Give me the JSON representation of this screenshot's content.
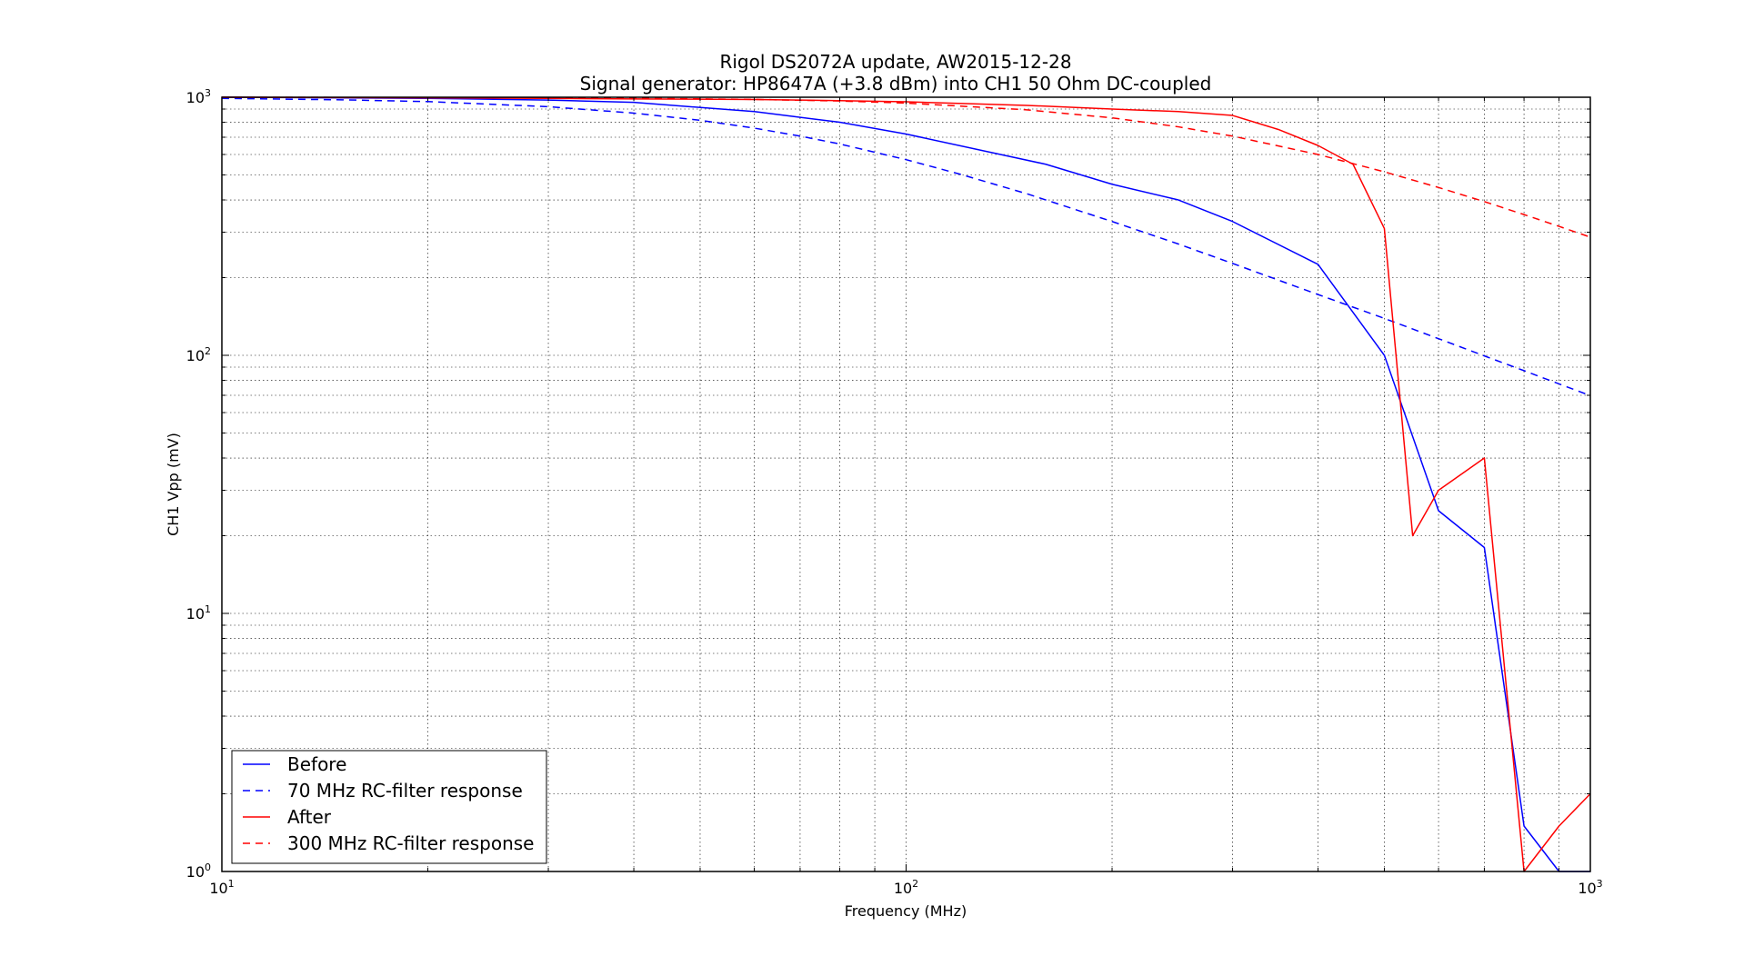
{
  "chart_data": {
    "type": "line",
    "title": "Rigol DS2072A update, AW2015-12-28",
    "subtitle": "Signal generator: HP8647A (+3.8 dBm) into CH1 50 Ohm DC-coupled",
    "xlabel": "Frequency (MHz)",
    "ylabel": "CH1 Vpp (mV)",
    "xscale": "log",
    "yscale": "log",
    "xlim": [
      10,
      1000
    ],
    "ylim": [
      1,
      1000
    ],
    "grid": true,
    "legend_position": "lower-left",
    "x_ticks": [
      {
        "base": "10",
        "exp": "1",
        "value": 10
      },
      {
        "base": "10",
        "exp": "2",
        "value": 100
      },
      {
        "base": "10",
        "exp": "3",
        "value": 1000
      }
    ],
    "y_ticks": [
      {
        "base": "10",
        "exp": "0",
        "value": 1
      },
      {
        "base": "10",
        "exp": "1",
        "value": 10
      },
      {
        "base": "10",
        "exp": "2",
        "value": 100
      },
      {
        "base": "10",
        "exp": "3",
        "value": 1000
      }
    ],
    "series": [
      {
        "name": "Before",
        "color": "#0000ff",
        "dash": "solid",
        "x": [
          10,
          20,
          30,
          40,
          60,
          80,
          100,
          160,
          200,
          250,
          300,
          400,
          500,
          600,
          700,
          800,
          900,
          1000
        ],
        "y": [
          1000,
          990,
          975,
          955,
          880,
          800,
          720,
          550,
          460,
          400,
          330,
          225,
          100,
          25,
          18,
          1.5,
          1.0,
          1.0
        ]
      },
      {
        "name": "70 MHz RC-filter response",
        "color": "#0000ff",
        "dash": "dashed",
        "x": [
          10,
          15,
          20,
          30,
          40,
          50,
          60,
          70,
          80,
          100,
          120,
          150,
          200,
          250,
          300,
          400,
          500,
          600,
          700,
          800,
          900,
          1000
        ],
        "y": [
          990,
          977,
          962,
          919,
          868,
          814,
          759,
          707,
          659,
          573,
          503,
          423,
          330,
          270,
          227,
          172,
          139,
          116,
          99.5,
          87.2,
          77.5,
          69.8
        ]
      },
      {
        "name": "After",
        "color": "#ff0000",
        "dash": "solid",
        "x": [
          10,
          20,
          30,
          40,
          60,
          80,
          100,
          150,
          200,
          250,
          300,
          350,
          400,
          450,
          500,
          550,
          600,
          700,
          800,
          900,
          1000
        ],
        "y": [
          1000,
          995,
          990,
          985,
          980,
          970,
          960,
          930,
          900,
          880,
          850,
          750,
          650,
          550,
          310,
          20,
          30,
          40,
          1.0,
          1.5,
          2.0
        ]
      },
      {
        "name": "300 MHz RC-filter response",
        "color": "#ff0000",
        "dash": "dashed",
        "x": [
          10,
          20,
          30,
          40,
          60,
          80,
          100,
          150,
          200,
          250,
          300,
          400,
          500,
          600,
          700,
          800,
          900,
          1000
        ],
        "y": [
          999,
          998,
          995,
          991,
          981,
          967,
          949,
          894,
          832,
          768,
          707,
          600,
          514,
          447,
          394,
          351,
          316,
          287
        ]
      }
    ]
  }
}
